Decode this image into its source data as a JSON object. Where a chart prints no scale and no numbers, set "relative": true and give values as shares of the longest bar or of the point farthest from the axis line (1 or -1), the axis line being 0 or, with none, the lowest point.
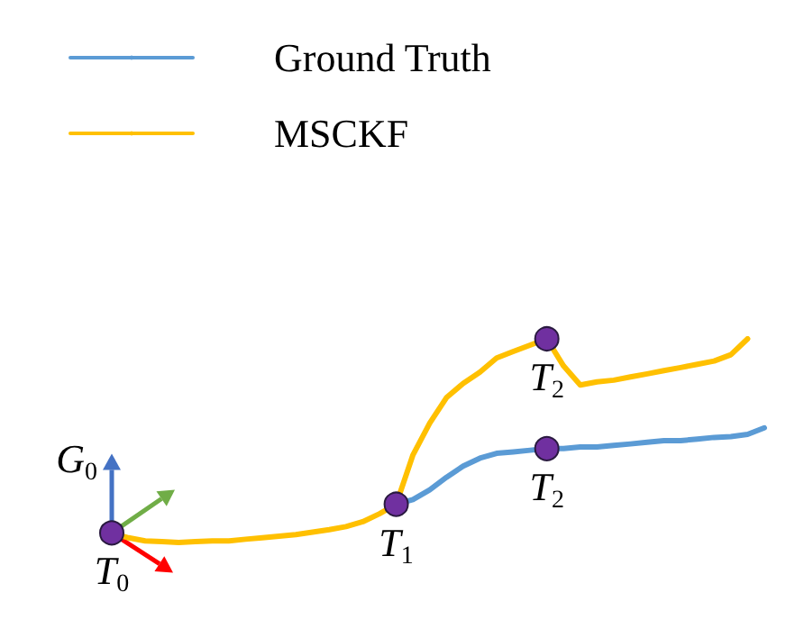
{
  "chart_data": {
    "type": "line",
    "relative": true,
    "legend": "top left",
    "categories": [
      null,
      null,
      null,
      null,
      null,
      null,
      null,
      null,
      null,
      null,
      null,
      null,
      null,
      null,
      null,
      null,
      null,
      null,
      null,
      null,
      null,
      null,
      null,
      null,
      null,
      null,
      null,
      null,
      null,
      null,
      null,
      null,
      null,
      null,
      null,
      null,
      null,
      null,
      null,
      null
    ],
    "series": [
      {
        "name": "Ground Truth",
        "color": "#5b9bd5",
        "marker": "none",
        "values": [
          null,
          null,
          null,
          null,
          null,
          null,
          null,
          null,
          null,
          null,
          null,
          null,
          null,
          null,
          null,
          null,
          null,
          0.188,
          0.211,
          0.258,
          0.32,
          0.375,
          0.414,
          0.438,
          0.445,
          0.453,
          0.461,
          0.461,
          0.469,
          0.469,
          0.477,
          0.484,
          0.492,
          0.5,
          0.5,
          0.508,
          0.516,
          0.52,
          0.531,
          0.563
        ]
      },
      {
        "name": "MSCKF",
        "color": "#ffc000",
        "marker": "none",
        "values": [
          0.047,
          0.023,
          0.008,
          0.004,
          0,
          0.004,
          0.008,
          0.008,
          0.016,
          0.023,
          0.031,
          0.039,
          0.051,
          0.063,
          0.078,
          0.102,
          0.141,
          0.188,
          0.43,
          0.586,
          0.711,
          0.781,
          0.836,
          0.906,
          0.938,
          0.969,
          1,
          0.867,
          0.773,
          0.789,
          0.797,
          0.813,
          0.828,
          0.844,
          0.859,
          0.875,
          0.891,
          0.922,
          1,
          null
        ]
      }
    ],
    "annotations": [
      {
        "text": "T$_{0}$",
        "y": 0.047
      },
      {
        "text": "T$_{1}$",
        "y": 0.188
      },
      {
        "text": "T$_{2}$",
        "y": 1
      },
      {
        "text": "T$_{2}$",
        "y": 0.461
      },
      "G$_{0}$"
    ]
  }
}
